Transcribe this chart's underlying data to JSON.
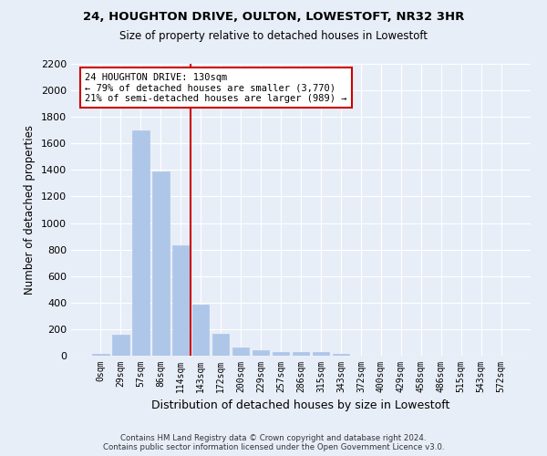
{
  "title1": "24, HOUGHTON DRIVE, OULTON, LOWESTOFT, NR32 3HR",
  "title2": "Size of property relative to detached houses in Lowestoft",
  "xlabel": "Distribution of detached houses by size in Lowestoft",
  "ylabel": "Number of detached properties",
  "bar_categories": [
    "0sqm",
    "29sqm",
    "57sqm",
    "86sqm",
    "114sqm",
    "143sqm",
    "172sqm",
    "200sqm",
    "229sqm",
    "257sqm",
    "286sqm",
    "315sqm",
    "343sqm",
    "372sqm",
    "400sqm",
    "429sqm",
    "458sqm",
    "486sqm",
    "515sqm",
    "543sqm",
    "572sqm"
  ],
  "bar_values": [
    15,
    155,
    1700,
    1390,
    835,
    385,
    165,
    65,
    40,
    30,
    30,
    25,
    15,
    0,
    0,
    0,
    0,
    0,
    0,
    0,
    0
  ],
  "bar_color": "#aec6e8",
  "bar_edge_color": "#aec6e8",
  "vline_x": 4.5,
  "vline_color": "#cc0000",
  "annotation_text": "24 HOUGHTON DRIVE: 130sqm\n← 79% of detached houses are smaller (3,770)\n21% of semi-detached houses are larger (989) →",
  "annotation_box_color": "#ffffff",
  "annotation_box_edge": "#cc0000",
  "ylim": [
    0,
    2200
  ],
  "yticks": [
    0,
    200,
    400,
    600,
    800,
    1000,
    1200,
    1400,
    1600,
    1800,
    2000,
    2200
  ],
  "footer1": "Contains HM Land Registry data © Crown copyright and database right 2024.",
  "footer2": "Contains public sector information licensed under the Open Government Licence v3.0.",
  "bg_color": "#e8eef8",
  "plot_bg_color": "#e8eef8"
}
